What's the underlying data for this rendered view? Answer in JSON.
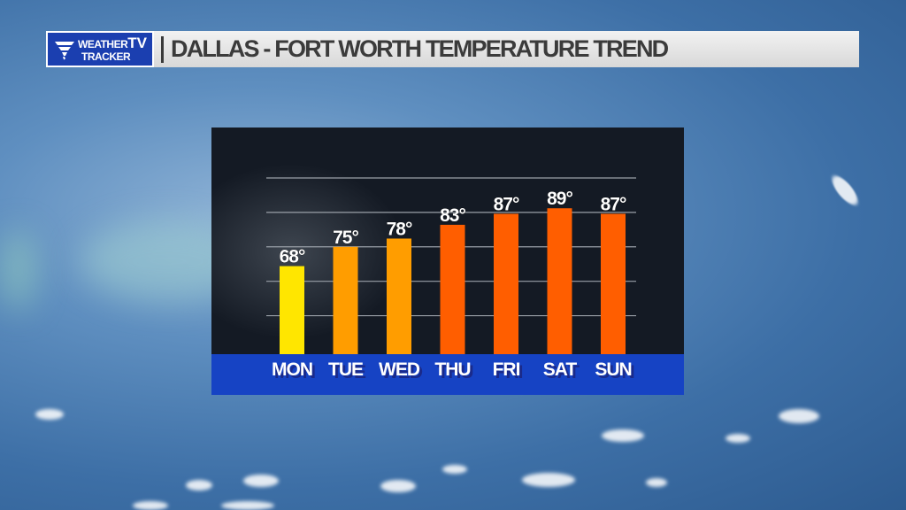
{
  "header": {
    "logo_line1": "WEATHER",
    "logo_line2": "TRACKER",
    "logo_tv": "TV",
    "title": "DALLAS - FORT WORTH TEMPERATURE TREND"
  },
  "colors": {
    "header_bar": "#e6e6e6",
    "logo_blue": "#1b3fb0",
    "day_strip_blue": "#1643c4",
    "panel_bg": "#141a24",
    "gridline": "#9aa0a8",
    "label_shadow": "#1a2a8a"
  },
  "chart_data": {
    "type": "bar",
    "title": "DALLAS - FORT WORTH TEMPERATURE TREND",
    "categories": [
      "MON",
      "TUE",
      "WED",
      "THU",
      "FRI",
      "SAT",
      "SUN"
    ],
    "values": [
      68,
      75,
      78,
      83,
      87,
      89,
      87
    ],
    "value_labels": [
      "68°",
      "75°",
      "78°",
      "83°",
      "87°",
      "89°",
      "87°"
    ],
    "bar_colors": [
      "#ffe600",
      "#ff9d00",
      "#ff9d00",
      "#ff5e00",
      "#ff5e00",
      "#ff5e00",
      "#ff5e00"
    ],
    "xlabel": "",
    "ylabel": "",
    "ylim": [
      37,
      100
    ],
    "gridlines": [
      50,
      62.5,
      75,
      87.5,
      100
    ],
    "grid": true,
    "legend": "none"
  }
}
